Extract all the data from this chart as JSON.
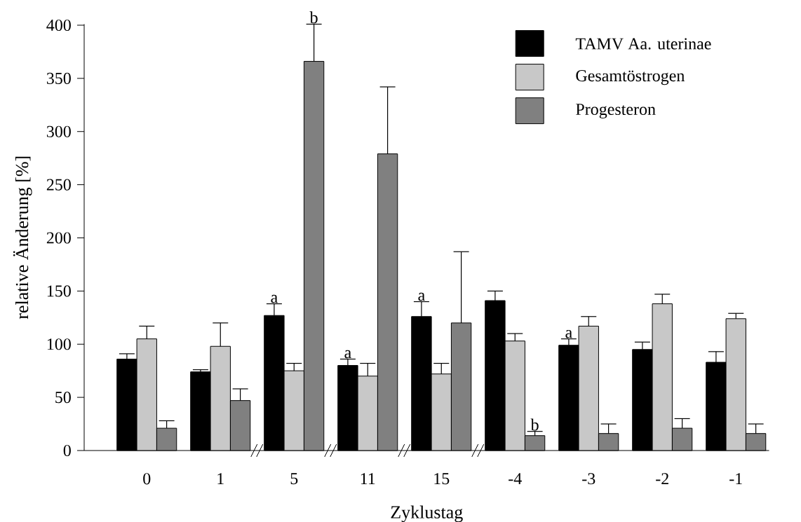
{
  "chart_data": {
    "type": "bar",
    "xlabel": "Zyklustag",
    "ylabel": "relative Änderung [%]",
    "categories": [
      "0",
      "1",
      "5",
      "11",
      "15",
      "-4",
      "-3",
      "-2",
      "-1"
    ],
    "series": [
      {
        "name": "TAMV Aa. uterinae",
        "color": "#000000",
        "values": [
          86,
          74,
          127,
          80,
          126,
          141,
          99,
          95,
          83
        ],
        "errors": [
          [
            86,
            91
          ],
          [
            74,
            76
          ],
          [
            127,
            138
          ],
          [
            80,
            86
          ],
          [
            126,
            140
          ],
          [
            141,
            150
          ],
          [
            99,
            105
          ],
          [
            95,
            102
          ],
          [
            83,
            93
          ]
        ]
      },
      {
        "name": "Gesamtöstrogen",
        "color": "#c8c8c8",
        "values": [
          105,
          98,
          75,
          70,
          72,
          103,
          117,
          138,
          124
        ],
        "errors": [
          [
            105,
            117
          ],
          [
            98,
            120
          ],
          [
            75,
            82
          ],
          [
            70,
            82
          ],
          [
            72,
            82
          ],
          [
            103,
            110
          ],
          [
            117,
            126
          ],
          [
            138,
            147
          ],
          [
            124,
            129
          ]
        ]
      },
      {
        "name": "Progesteron",
        "color": "#808080",
        "values": [
          21,
          47,
          366,
          279,
          120,
          14,
          16,
          21,
          16
        ],
        "errors": [
          [
            21,
            28
          ],
          [
            47,
            58
          ],
          [
            366,
            401
          ],
          [
            279,
            342
          ],
          [
            120,
            187
          ],
          [
            14,
            18
          ],
          [
            16,
            25
          ],
          [
            21,
            30
          ],
          [
            16,
            25
          ]
        ]
      }
    ],
    "ylim": [
      0,
      401
    ],
    "yticks": [
      0,
      50,
      100,
      150,
      200,
      250,
      300,
      350,
      400
    ],
    "annotations": [
      "a",
      "b",
      "a",
      "a",
      "b",
      "a"
    ],
    "legend": "top right",
    "grid": false
  }
}
